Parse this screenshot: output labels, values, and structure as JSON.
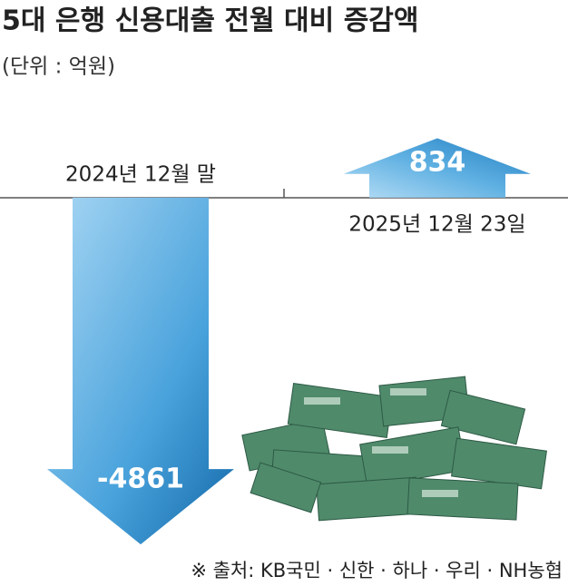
{
  "chart_data": {
    "type": "bar",
    "title": "5대 은행 신용대출 전월 대비 증감액",
    "subtitle": "(단위 : 억원)",
    "categories": [
      "2024년 12월 말",
      "2025년 12월 23일"
    ],
    "values": [
      -4861,
      834
    ],
    "ylim": [
      -5000,
      1500
    ],
    "source": "※ 출처: KB국민 · 신한 · 하나 · 우리 · NH농협"
  }
}
